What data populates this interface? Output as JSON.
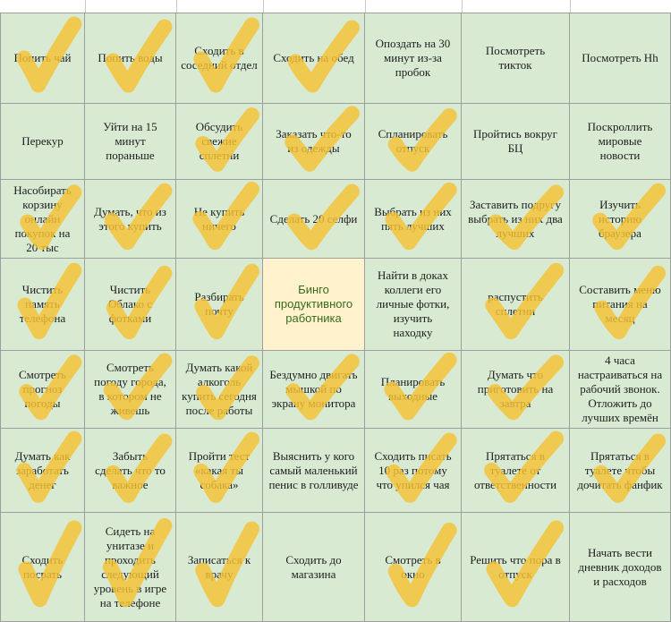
{
  "board": {
    "rows": [
      [
        {
          "text": "Попить чай",
          "checked": true
        },
        {
          "text": "Попить воды",
          "checked": true
        },
        {
          "text": "Сходить в\nсоседний отдел",
          "checked": true
        },
        {
          "text": "Сходить на обед",
          "checked": true
        },
        {
          "text": "Опоздать на 30\nминут из-за\nпробок",
          "checked": false
        },
        {
          "text": "Посмотреть\nтикток",
          "checked": false
        },
        {
          "text": "Посмотреть Hh",
          "checked": false
        }
      ],
      [
        {
          "text": "Перекур",
          "checked": false
        },
        {
          "text": "Уйти на 15\nминут\nпораньше",
          "checked": false
        },
        {
          "text": "Обсудить\nсвежие\nсплетни",
          "checked": true
        },
        {
          "text": "Заказать что-то\nиз одежды",
          "checked": true
        },
        {
          "text": "Спланировать\nотпуск",
          "checked": true
        },
        {
          "text": "Пройтись вокруг\nБЦ",
          "checked": false
        },
        {
          "text": "Поскроллить\nмировые\nновости",
          "checked": false
        }
      ],
      [
        {
          "text": "Насобирать\nкорзину\nонлайн\nпокупок на\n20 тыс",
          "checked": true
        },
        {
          "text": "Думать, что из\nэтого купить",
          "checked": true
        },
        {
          "text": "Не купить\nничего",
          "checked": true
        },
        {
          "text": "Сделать 20 селфи",
          "checked": true
        },
        {
          "text": "Выбрать из них\nпять лучших",
          "checked": true
        },
        {
          "text": "Заставить подругу\nвыбрать из них два\nлучших",
          "checked": true
        },
        {
          "text": "Изучить\nисторию\nбраузера",
          "checked": true
        }
      ],
      [
        {
          "text": "Чистить\nпамять\nтелефона",
          "checked": true
        },
        {
          "text": "Чистить\nОблако с\nфотками",
          "checked": true
        },
        {
          "text": "Разбирать\nпочту",
          "checked": true
        },
        {
          "text": "Бинго\nпродуктивного\nработника",
          "checked": false,
          "center": true
        },
        {
          "text": "Найти в доках\nколлеги его\nличные фотки,\nизучить\nнаходку",
          "checked": false
        },
        {
          "text": "распустить\nсплетни",
          "checked": true
        },
        {
          "text": "Составить меню\nпитания на\nмесяц",
          "checked": true
        }
      ],
      [
        {
          "text": "Смотреть\nпрогноз\nпогоды",
          "checked": true
        },
        {
          "text": "Смотреть\nпогоду города,\nв котором не\nживешь",
          "checked": true
        },
        {
          "text": "Думать какой\nалкоголь\nкупить сегодня\nпосле работы",
          "checked": true
        },
        {
          "text": "Бездумно двигать\nмышкой по\nэкрану монитора",
          "checked": true
        },
        {
          "text": "Планировать\nвыходные",
          "checked": true
        },
        {
          "text": "Думать что\nприготовить на\nзавтра",
          "checked": true
        },
        {
          "text": "4 часа\nнастраиваться на\nрабочий звонок.\nОтложить до\nлучших времён",
          "checked": false
        }
      ],
      [
        {
          "text": "Думать как\nзаработать\nденег",
          "checked": true
        },
        {
          "text": "Забыть\nсделать что то\nважное",
          "checked": true
        },
        {
          "text": "Пройти тест\n«какая ты\nсобака»",
          "checked": true
        },
        {
          "text": "Выяснить у кого\nсамый маленький\nпенис в голливуде",
          "checked": false
        },
        {
          "text": "Сходить писать\n10 раз потому\nчто упился чая",
          "checked": true
        },
        {
          "text": "Прятаться в\nтуалете от\nответственности",
          "checked": true
        },
        {
          "text": "Прятаться в\nтуалете чтобы\nдочитать фанфик",
          "checked": true
        }
      ],
      [
        {
          "text": "Сходить\nпосрать",
          "checked": true
        },
        {
          "text": "Сидеть на\nунитазе и\nпроходить\nследующий\nуровень в игре\nна телефоне",
          "checked": true
        },
        {
          "text": "Записаться к\nврачу",
          "checked": true
        },
        {
          "text": "Сходить до\nмагазина",
          "checked": false
        },
        {
          "text": "Смотреть в\nокно",
          "checked": true
        },
        {
          "text": "Решить что пора в\nотпуск",
          "checked": true
        },
        {
          "text": "Начать вести\nдневник доходов\nи расходов",
          "checked": false
        }
      ]
    ]
  },
  "colors": {
    "cell_bg": "#d9ead3",
    "center_bg": "#fff2cc",
    "center_text": "#3a6b1d",
    "check_mark": "#f5c233",
    "grid_line": "#9e9e9e"
  },
  "icons": {
    "check": "checkmark-icon"
  }
}
